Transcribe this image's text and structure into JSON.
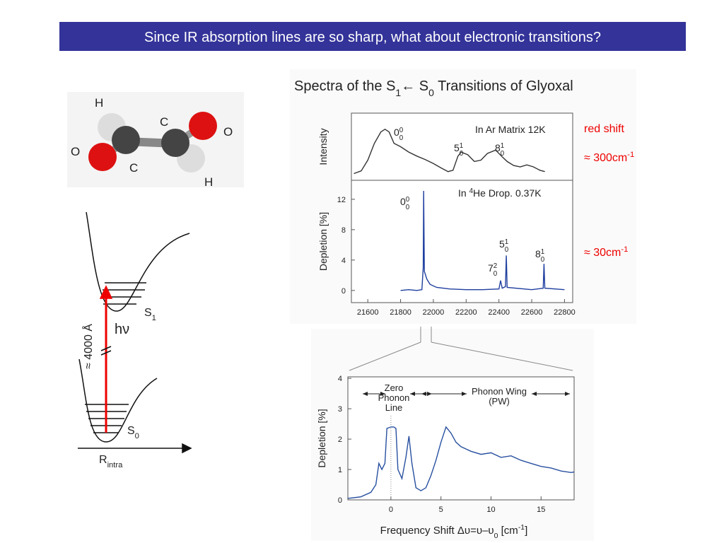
{
  "header": {
    "title": "Since IR absorption lines are so sharp, what about electronic transitions?"
  },
  "molecule": {
    "labels": [
      "H",
      "C",
      "O",
      "O",
      "C",
      "H"
    ]
  },
  "energy_diagram": {
    "upper_state": [
      {
        "t": "S"
      },
      {
        "t": "1",
        "sub": true
      }
    ],
    "lower_state": [
      {
        "t": "S"
      },
      {
        "t": "0",
        "sub": true
      }
    ],
    "photon": "hν",
    "wavelength": "≈ 4000 Å",
    "coordinate": [
      {
        "t": "R"
      },
      {
        "t": "intra",
        "sub": true
      }
    ]
  },
  "figure_title": [
    {
      "t": "Spectra of the S"
    },
    {
      "t": "1",
      "sub": true
    },
    {
      "t": "← S"
    },
    {
      "t": "0",
      "sub": true
    },
    {
      "t": " Transitions of Glyoxal"
    }
  ],
  "side_notes": [
    [
      {
        "t": "red shift"
      }
    ],
    [
      {
        "t": "≈ 300cm"
      },
      {
        "t": "-1",
        "sup": true
      }
    ],
    [
      {
        "t": "≈ 30cm"
      },
      {
        "t": "-1",
        "sup": true
      }
    ]
  ],
  "chart_data": [
    {
      "type": "line",
      "y_label": "Intensity",
      "annotations": [
        [
          {
            "t": "In Ar Matrix 12K"
          }
        ],
        [
          {
            "t": "0"
          },
          {
            "t": "0",
            "sup": true
          },
          {
            "t": "0",
            "sub": true
          }
        ],
        [
          {
            "t": "5"
          },
          {
            "t": "1",
            "sup": true
          },
          {
            "t": "0",
            "sub": true
          }
        ],
        [
          {
            "t": "8"
          },
          {
            "t": "1",
            "sup": true
          },
          {
            "t": "0",
            "sub": true
          }
        ]
      ],
      "xlim": [
        21500,
        22850
      ],
      "ylim": [
        0,
        1
      ],
      "color": "#333333",
      "x": [
        21515,
        21560,
        21600,
        21640,
        21680,
        21705,
        21730,
        21760,
        21800,
        21850,
        21900,
        21950,
        22000,
        22050,
        22090,
        22120,
        22150,
        22170,
        22210,
        22250,
        22290,
        22330,
        22380,
        22420,
        22450,
        22490,
        22530,
        22570,
        22610,
        22650,
        22680
      ],
      "values": [
        0.1,
        0.14,
        0.3,
        0.55,
        0.72,
        0.76,
        0.72,
        0.55,
        0.5,
        0.42,
        0.36,
        0.31,
        0.25,
        0.18,
        0.13,
        0.15,
        0.36,
        0.42,
        0.38,
        0.28,
        0.3,
        0.4,
        0.45,
        0.35,
        0.28,
        0.22,
        0.2,
        0.23,
        0.2,
        0.15,
        0.13
      ]
    },
    {
      "type": "line",
      "y_label": "Depletion [%]",
      "annotations": [
        [
          {
            "t": "In "
          },
          {
            "t": "4",
            "sup": true
          },
          {
            "t": "He Drop. 0.37K"
          }
        ],
        [
          {
            "t": "0"
          },
          {
            "t": "0",
            "sup": true
          },
          {
            "t": "0",
            "sub": true
          }
        ],
        [
          {
            "t": "5"
          },
          {
            "t": "1",
            "sup": true
          },
          {
            "t": "0",
            "sub": true
          }
        ],
        [
          {
            "t": "7"
          },
          {
            "t": "2",
            "sup": true
          },
          {
            "t": "0",
            "sub": true
          }
        ],
        [
          {
            "t": "8"
          },
          {
            "t": "1",
            "sup": true
          },
          {
            "t": "0",
            "sub": true
          }
        ]
      ],
      "xlim": [
        21500,
        22850
      ],
      "ylim": [
        -1.6,
        14.5
      ],
      "color": "#1f3f9f",
      "xticks": [
        21600,
        21800,
        22000,
        22200,
        22400,
        22600,
        22800
      ],
      "yticks": [
        0,
        4,
        8,
        12
      ],
      "x": [
        21800,
        21850,
        21900,
        21930,
        21938,
        21941,
        21945,
        21960,
        21980,
        22020,
        22100,
        22200,
        22300,
        22400,
        22410,
        22420,
        22440,
        22445,
        22450,
        22600,
        22670,
        22675,
        22680,
        22800
      ],
      "values": [
        0,
        0.1,
        0,
        0.1,
        3,
        13.1,
        2.5,
        1.5,
        0.8,
        0.4,
        0.2,
        0.1,
        0.1,
        0.2,
        1.3,
        0.3,
        0.5,
        4.6,
        0.4,
        0.1,
        0.3,
        3.5,
        0.3,
        0.1
      ]
    },
    {
      "type": "line",
      "y_label": "Depletion [%]",
      "x_label": [
        {
          "t": "Frequency Shift  Δυ=υ–υ"
        },
        {
          "t": "0",
          "sub": true
        },
        {
          "t": " [cm"
        },
        {
          "t": "-1",
          "sup": true
        },
        {
          "t": "]"
        }
      ],
      "annotations": [
        [
          "Zero",
          "Phonon",
          "Line"
        ],
        [
          "Phonon Wing",
          "(PW)"
        ]
      ],
      "reference_x": 0,
      "xlim": [
        -4.3,
        18.3
      ],
      "ylim": [
        0,
        4.05
      ],
      "color": "#2850a0",
      "xticks": [
        0,
        5,
        10,
        15
      ],
      "yticks": [
        0,
        1,
        2,
        3,
        4
      ],
      "x": [
        -4.3,
        -3,
        -2,
        -1.5,
        -1.2,
        -0.9,
        -0.6,
        -0.4,
        0,
        0.3,
        0.5,
        0.7,
        1.1,
        1.5,
        1.8,
        2.1,
        2.5,
        3,
        3.5,
        4,
        4.5,
        5,
        5.5,
        6,
        6.5,
        7,
        8,
        9,
        10,
        11,
        12,
        13,
        14,
        15,
        16,
        17,
        18,
        18.3
      ],
      "values": [
        0.05,
        0.1,
        0.25,
        0.5,
        1.2,
        1.0,
        1.2,
        2.35,
        2.4,
        2.4,
        2.35,
        1.0,
        0.7,
        1.4,
        2.1,
        1.2,
        0.4,
        0.3,
        0.4,
        0.8,
        1.3,
        1.9,
        2.4,
        2.2,
        1.9,
        1.75,
        1.6,
        1.5,
        1.55,
        1.4,
        1.45,
        1.3,
        1.2,
        1.1,
        1.05,
        0.95,
        0.9,
        0.92
      ]
    }
  ]
}
